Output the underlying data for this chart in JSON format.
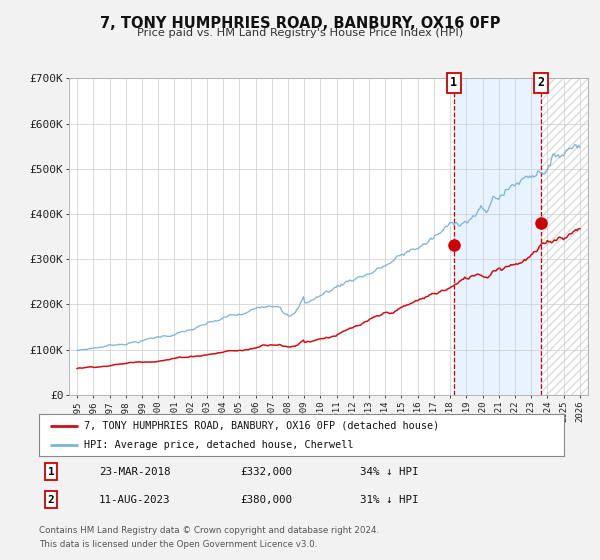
{
  "title": "7, TONY HUMPHRIES ROAD, BANBURY, OX16 0FP",
  "subtitle": "Price paid vs. HM Land Registry's House Price Index (HPI)",
  "ylim": [
    0,
    700000
  ],
  "xlim": [
    1994.5,
    2026.5
  ],
  "yticks": [
    0,
    100000,
    200000,
    300000,
    400000,
    500000,
    600000,
    700000
  ],
  "ytick_labels": [
    "£0",
    "£100K",
    "£200K",
    "£300K",
    "£400K",
    "£500K",
    "£600K",
    "£700K"
  ],
  "hpi_color": "#7ab4d8",
  "price_color": "#cc1111",
  "marker_color": "#cc0000",
  "vline_color": "#cc0000",
  "background_color": "#f2f2f2",
  "plot_bg_color": "#ffffff",
  "grid_color": "#cccccc",
  "sale1_x": 2018.22,
  "sale1_y": 332000,
  "sale1_label": "1",
  "sale1_date": "23-MAR-2018",
  "sale1_price": "£332,000",
  "sale1_hpi": "34% ↓ HPI",
  "sale2_x": 2023.61,
  "sale2_y": 380000,
  "sale2_label": "2",
  "sale2_date": "11-AUG-2023",
  "sale2_price": "£380,000",
  "sale2_hpi": "31% ↓ HPI",
  "legend_label1": "7, TONY HUMPHRIES ROAD, BANBURY, OX16 0FP (detached house)",
  "legend_label2": "HPI: Average price, detached house, Cherwell",
  "footer1": "Contains HM Land Registry data © Crown copyright and database right 2024.",
  "footer2": "This data is licensed under the Open Government Licence v3.0."
}
